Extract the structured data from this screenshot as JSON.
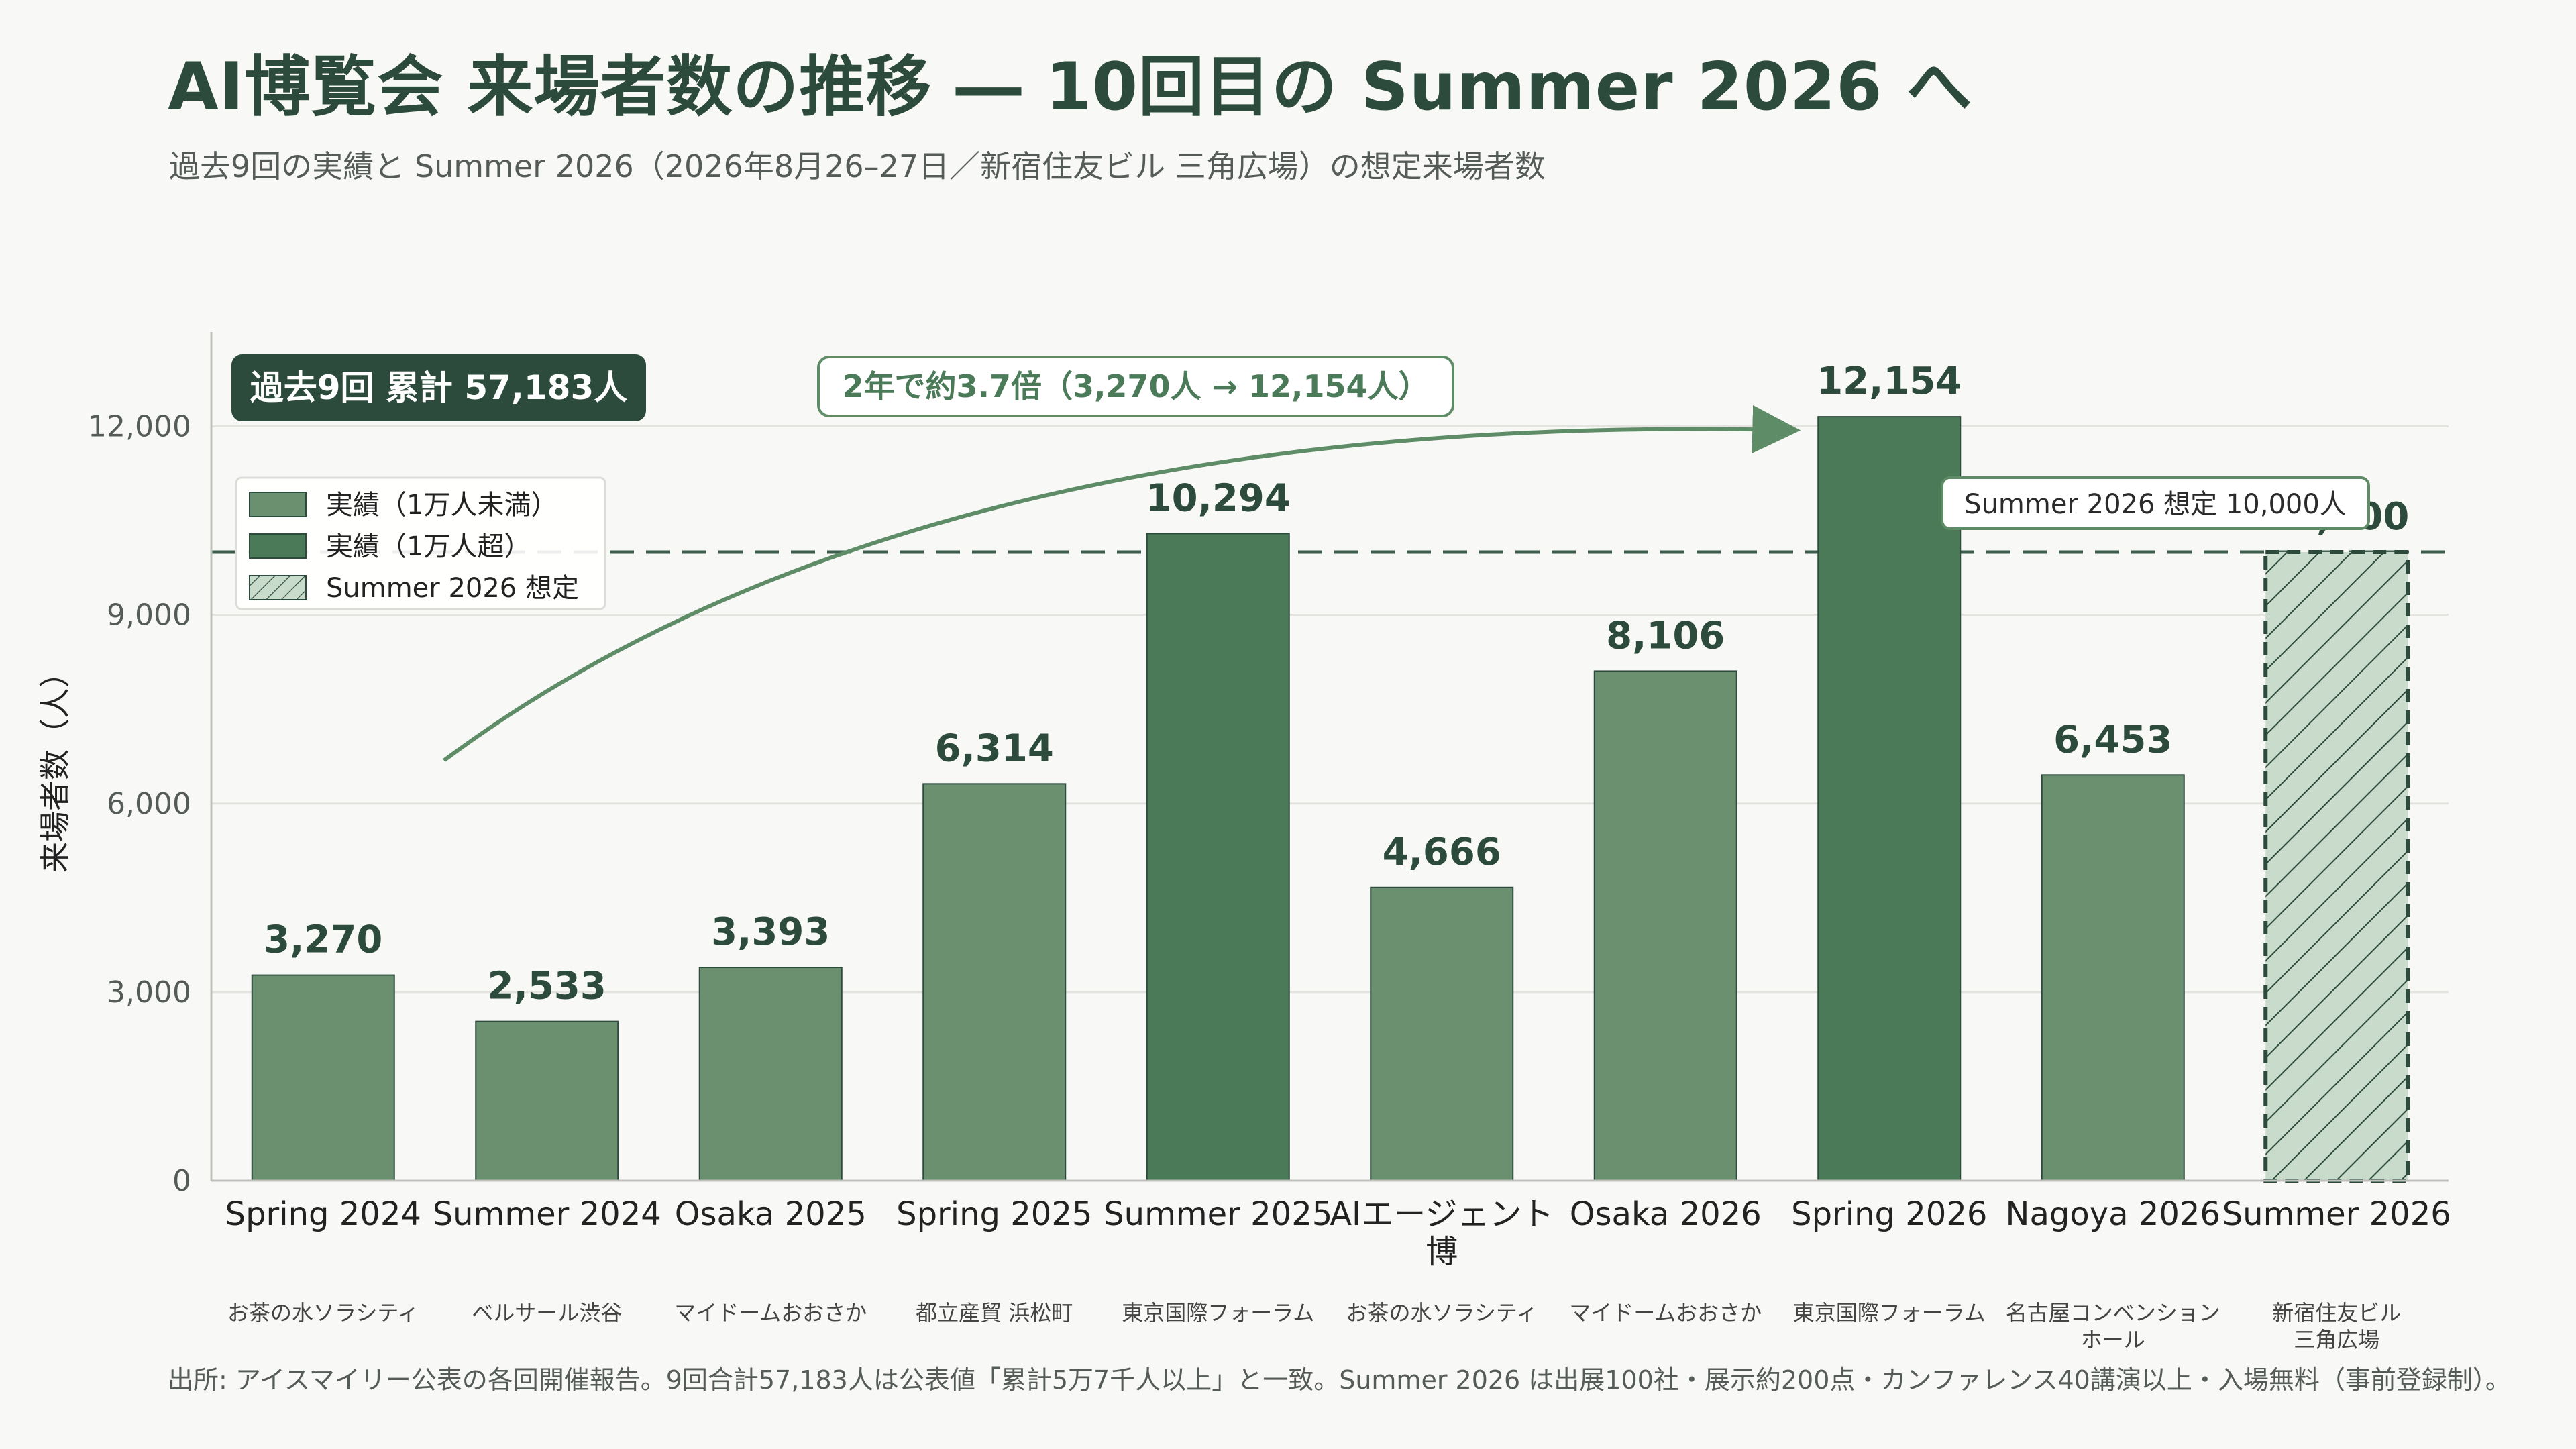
{
  "header": {
    "title": "AI博覧会 来場者数の推移 ― 10回目の Summer 2026 へ",
    "subtitle": "過去9回の実績と Summer 2026（2026年8月26–27日／新宿住友ビル 三角広場）の想定来場者数"
  },
  "footer": {
    "source": "出所: アイスマイリー公表の各回開催報告。9回合計57,183人は公表値「累計5万7千人以上」と一致。Summer 2026 は出展100社・展示約200点・カンファレンス40講演以上・入場無料（事前登録制）。"
  },
  "chart_data": {
    "type": "bar",
    "ylabel": "来場者数（人）",
    "ylim": [
      0,
      13500
    ],
    "yticks": [
      0,
      3000,
      6000,
      9000,
      12000
    ],
    "ytick_labels": [
      "0",
      "3,000",
      "6,000",
      "9,000",
      "12,000"
    ],
    "grid": true,
    "categories": [
      [
        "Spring 2024"
      ],
      [
        "Summer 2024"
      ],
      [
        "Osaka 2025"
      ],
      [
        "Spring 2025"
      ],
      [
        "Summer 2025"
      ],
      [
        "AIエージェント",
        "博"
      ],
      [
        "Osaka 2026"
      ],
      [
        "Spring 2026"
      ],
      [
        "Nagoya 2026"
      ],
      [
        "Summer 2026"
      ]
    ],
    "venues": [
      [
        "お茶の水ソラシティ"
      ],
      [
        "ベルサール渋谷"
      ],
      [
        "マイドームおおさか"
      ],
      [
        "都立産貿 浜松町"
      ],
      [
        "東京国際フォーラム"
      ],
      [
        "お茶の水ソラシティ"
      ],
      [
        "マイドームおおさか"
      ],
      [
        "東京国際フォーラム"
      ],
      [
        "名古屋コンベンション",
        "ホール"
      ],
      [
        "新宿住友ビル",
        "三角広場"
      ]
    ],
    "values": [
      3270,
      2533,
      3393,
      6314,
      10294,
      4666,
      8106,
      12154,
      6453,
      10000
    ],
    "value_labels": [
      "3,270",
      "2,533",
      "3,393",
      "6,314",
      "10,294",
      "4,666",
      "8,106",
      "12,154",
      "6,453",
      "10,000"
    ],
    "kinds": [
      "under",
      "under",
      "under",
      "under",
      "over",
      "under",
      "under",
      "over",
      "under",
      "forecast"
    ],
    "colors": {
      "under": "#6b9070",
      "over": "#4a7a57",
      "forecast_fill": "#c9dccb",
      "forecast_stroke": "#2d4b3c",
      "text_dark": "#2d4b3c",
      "accent": "#5e8c66",
      "forecast_label": "#4a7a57"
    },
    "legend": {
      "position": "top-left",
      "items": [
        {
          "kind": "under",
          "label": "実績（1万人未満）"
        },
        {
          "kind": "over",
          "label": "実績（1万人超）"
        },
        {
          "kind": "forecast",
          "label": "Summer 2026 想定"
        }
      ]
    },
    "reference_line": {
      "value": 10000,
      "label": "Summer 2026 想定 10,000人"
    },
    "total_badge": "過去9回 累計 57,183人",
    "growth_annotation": "2年で約3.7倍（3,270人 → 12,154人）",
    "growth_from_index": 0,
    "growth_to_index": 7
  }
}
